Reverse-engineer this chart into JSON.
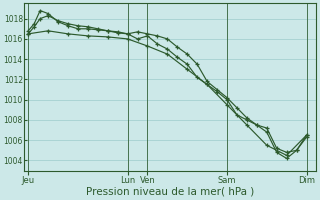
{
  "bg_color": "#cce8e8",
  "grid_color": "#aad4d4",
  "line_color": "#2d5a2d",
  "xlabel": "Pression niveau de la mer( hPa )",
  "ylim": [
    1003.0,
    1019.5
  ],
  "yticks": [
    1004,
    1006,
    1008,
    1010,
    1012,
    1014,
    1016,
    1018
  ],
  "ylabel_fontsize": 6,
  "xlabel_fontsize": 7.5,
  "xtick_labels": [
    "Jeu",
    "Lun",
    "Ven",
    "Sam",
    "Dim"
  ],
  "xtick_positions": [
    0,
    5,
    6,
    10,
    14
  ],
  "xlim": [
    -0.2,
    14.5
  ],
  "vlines": [
    0,
    5,
    6,
    10,
    14
  ],
  "series1_x": [
    0,
    0.3,
    0.6,
    1.0,
    1.5,
    2.0,
    2.5,
    3.0,
    3.5,
    4.0,
    4.5,
    5.0,
    5.5,
    6.0,
    6.5,
    7.0,
    7.5,
    8.0,
    8.5,
    9.0,
    9.5,
    10.0,
    10.5,
    11.0,
    11.5,
    12.0,
    12.5,
    13.0,
    13.5,
    14.0
  ],
  "series1_y": [
    1016.5,
    1017.2,
    1018.0,
    1018.3,
    1017.8,
    1017.5,
    1017.3,
    1017.2,
    1017.0,
    1016.8,
    1016.7,
    1016.5,
    1016.7,
    1016.5,
    1016.3,
    1016.0,
    1015.2,
    1014.5,
    1013.5,
    1011.8,
    1011.0,
    1010.2,
    1009.2,
    1008.2,
    1007.5,
    1007.2,
    1005.2,
    1004.8,
    1005.0,
    1006.3
  ],
  "series2_x": [
    0,
    0.3,
    0.6,
    1.0,
    1.5,
    2.0,
    2.5,
    3.0,
    3.5,
    4.0,
    4.5,
    5.0,
    5.5,
    6.0,
    6.5,
    7.0,
    7.5,
    8.0,
    8.5,
    9.0,
    9.5,
    10.0,
    10.5,
    11.0,
    11.5,
    12.0,
    12.5,
    13.0,
    13.5,
    14.0
  ],
  "series2_y": [
    1016.8,
    1017.5,
    1018.8,
    1018.5,
    1017.7,
    1017.3,
    1017.0,
    1017.0,
    1016.9,
    1016.8,
    1016.6,
    1016.5,
    1016.0,
    1016.3,
    1015.5,
    1015.0,
    1014.2,
    1013.5,
    1012.2,
    1011.5,
    1010.8,
    1010.0,
    1008.5,
    1008.0,
    1007.5,
    1006.8,
    1004.8,
    1004.2,
    1005.0,
    1006.5
  ],
  "series3_x": [
    0,
    1.0,
    2.0,
    3.0,
    4.0,
    5.0,
    6.0,
    7.0,
    8.0,
    9.0,
    10.0,
    11.0,
    12.0,
    13.0,
    14.0
  ],
  "series3_y": [
    1016.5,
    1016.8,
    1016.5,
    1016.3,
    1016.2,
    1016.0,
    1015.3,
    1014.5,
    1013.0,
    1011.5,
    1009.5,
    1007.5,
    1005.5,
    1004.5,
    1006.5
  ]
}
